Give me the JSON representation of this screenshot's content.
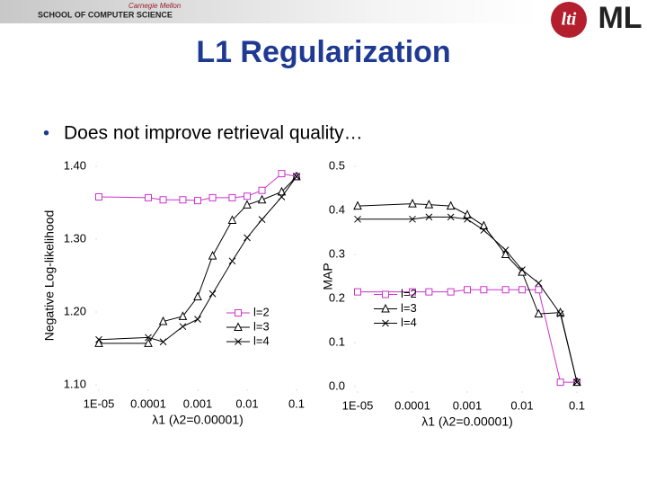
{
  "header": {
    "school": "SCHOOL OF COMPUTER SCIENCE",
    "university": "Carnegie Mellon",
    "logo_left": "lti",
    "logo_right": "ML"
  },
  "title": "L1 Regularization",
  "bullet": "Does not improve retrieval quality…",
  "chart_data": [
    {
      "type": "line",
      "xscale": "log",
      "x_label": "λ1 (λ2=0.00001)",
      "y_label": "Negative Log-likelihood",
      "legend": "lower right",
      "x": [
        1e-05,
        0.0001,
        0.0002,
        0.0005,
        0.001,
        0.002,
        0.005,
        0.01,
        0.02,
        0.05,
        0.1
      ],
      "xlim": [
        1e-05,
        0.1
      ],
      "xticks": [
        {
          "value": 1e-05,
          "label": "1E-05"
        },
        0.0001,
        0.001,
        0.01,
        0.1
      ],
      "ylim": [
        1.1,
        1.4
      ],
      "yticks": [
        {
          "value": 1.1,
          "label": "1.10"
        },
        {
          "value": 1.2,
          "label": "1.20"
        },
        {
          "value": 1.3,
          "label": "1.30"
        },
        {
          "value": 1.4,
          "label": "1.40"
        }
      ],
      "series": [
        {
          "name": "l=2",
          "color": "#cc33cc",
          "marker": "square",
          "values": [
            1.358,
            1.357,
            1.354,
            1.354,
            1.353,
            1.357,
            1.357,
            1.359,
            1.367,
            1.39,
            1.386
          ]
        },
        {
          "name": "l=3",
          "color": "#000000",
          "marker": "triangle",
          "values": [
            1.157,
            1.157,
            1.187,
            1.194,
            1.221,
            1.277,
            1.326,
            1.347,
            1.354,
            1.365,
            1.386
          ]
        },
        {
          "name": "l=4",
          "color": "#000000",
          "marker": "x",
          "values": [
            1.162,
            1.165,
            1.159,
            1.18,
            1.19,
            1.225,
            1.27,
            1.302,
            1.327,
            1.358,
            1.386
          ]
        }
      ]
    },
    {
      "type": "line",
      "xscale": "log",
      "x_label": "λ1 (λ2=0.00001)",
      "y_label": "MAP",
      "legend": "center left",
      "x": [
        1e-05,
        0.0001,
        0.0002,
        0.0005,
        0.001,
        0.002,
        0.005,
        0.01,
        0.02,
        0.05,
        0.1
      ],
      "xlim": [
        1e-05,
        0.1
      ],
      "xticks": [
        {
          "value": 1e-05,
          "label": "1E-05"
        },
        0.0001,
        0.001,
        0.01,
        0.1
      ],
      "ylim": [
        0,
        0.5
      ],
      "yticks": [
        {
          "value": 0,
          "label": "0.0"
        },
        0.1,
        0.2,
        0.3,
        0.4,
        0.5
      ],
      "series": [
        {
          "name": "l=2",
          "color": "#cc33cc",
          "marker": "square",
          "values": [
            0.215,
            0.215,
            0.215,
            0.215,
            0.22,
            0.22,
            0.22,
            0.22,
            0.22,
            0.01,
            0.01
          ]
        },
        {
          "name": "l=3",
          "color": "#000000",
          "marker": "triangle",
          "values": [
            0.41,
            0.415,
            0.413,
            0.41,
            0.39,
            0.365,
            0.3,
            0.26,
            0.165,
            0.168,
            0.01
          ]
        },
        {
          "name": "l=4",
          "color": "#000000",
          "marker": "x",
          "values": [
            0.38,
            0.38,
            0.385,
            0.385,
            0.38,
            0.355,
            0.31,
            0.265,
            0.235,
            0.165,
            0.01
          ]
        }
      ]
    }
  ]
}
